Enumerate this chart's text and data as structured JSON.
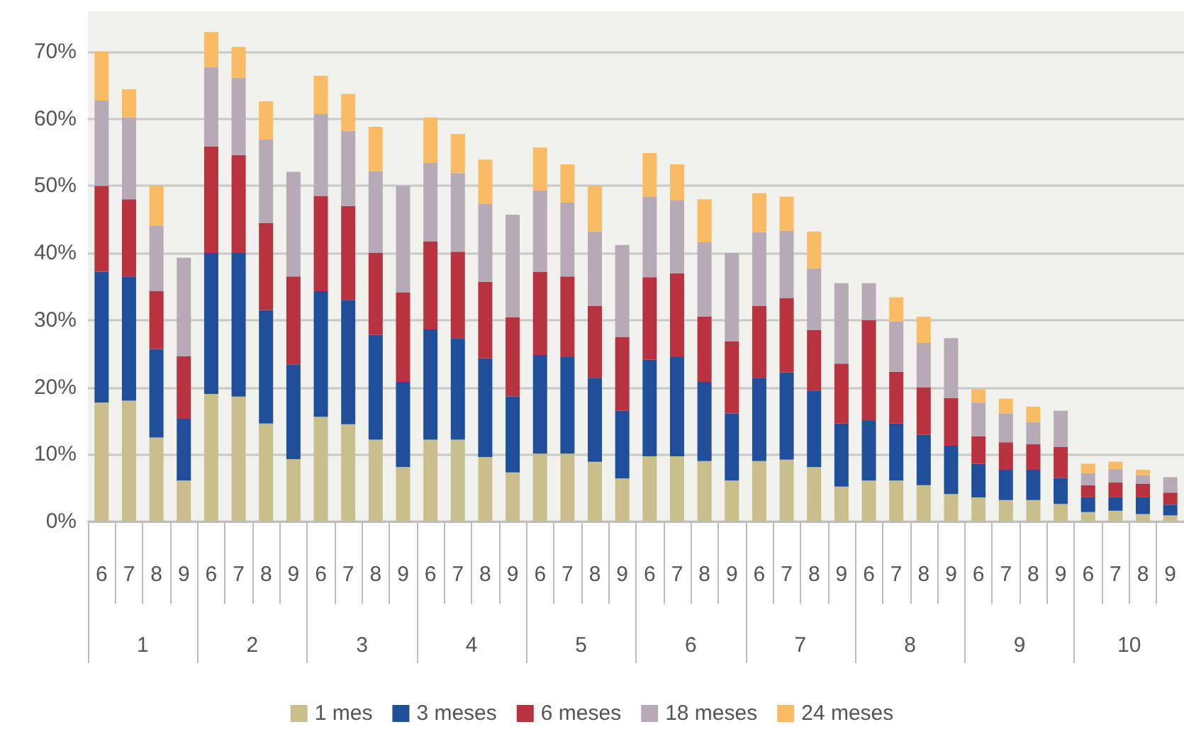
{
  "chart_data": {
    "type": "bar",
    "stacked": true,
    "grid": "y",
    "legend": "bottom",
    "categories": [
      "6",
      "7",
      "8",
      "9",
      "6",
      "7",
      "8",
      "9",
      "6",
      "7",
      "8",
      "9",
      "6",
      "7",
      "8",
      "9",
      "6",
      "7",
      "8",
      "9",
      "6",
      "7",
      "8",
      "9",
      "6",
      "7",
      "8",
      "9",
      "6",
      "7",
      "8",
      "9",
      "6",
      "7",
      "8",
      "9",
      "6",
      "7",
      "8",
      "9"
    ],
    "annotations": [
      "1",
      "2",
      "3",
      "4",
      "5",
      "6",
      "7",
      "8",
      "9",
      "10"
    ],
    "ylim": [
      0,
      76
    ],
    "yticks": [
      {
        "value": 0,
        "label": "0%"
      },
      {
        "value": 10,
        "label": "10%"
      },
      {
        "value": 20,
        "label": "20%"
      },
      {
        "value": 30,
        "label": "30%"
      },
      {
        "value": 40,
        "label": "40%"
      },
      {
        "value": 50,
        "label": "50%"
      },
      {
        "value": 60,
        "label": "60%"
      },
      {
        "value": 70,
        "label": "70%"
      }
    ],
    "series": [
      {
        "name": "1 mes",
        "color": "#c8bf8c",
        "values": [
          17.7,
          18.0,
          12.5,
          6.1,
          19.0,
          18.6,
          14.6,
          9.3,
          15.6,
          14.5,
          12.2,
          8.1,
          12.2,
          12.2,
          9.6,
          7.3,
          10.1,
          10.1,
          8.9,
          6.4,
          9.7,
          9.7,
          9.0,
          6.1,
          9.0,
          9.2,
          8.1,
          5.2,
          6.1,
          6.1,
          5.4,
          4.1,
          3.6,
          3.2,
          3.2,
          2.6,
          1.4,
          1.6,
          1.1,
          0.9
        ]
      },
      {
        "name": "3 meses",
        "color": "#1f4e9a",
        "values": [
          19.5,
          18.5,
          13.2,
          9.2,
          21.0,
          21.4,
          16.9,
          14.1,
          18.7,
          18.5,
          15.6,
          12.7,
          16.4,
          15.1,
          14.7,
          11.3,
          14.7,
          14.4,
          12.5,
          10.1,
          14.4,
          14.8,
          11.8,
          10.0,
          12.4,
          13.0,
          11.4,
          9.4,
          8.9,
          8.5,
          7.5,
          7.2,
          5.0,
          4.5,
          4.5,
          3.9,
          2.2,
          2.0,
          2.5,
          1.6
        ]
      },
      {
        "name": "6 meses",
        "color": "#b8323f",
        "values": [
          12.8,
          11.5,
          8.6,
          9.3,
          15.9,
          14.6,
          13.0,
          13.1,
          14.2,
          14.0,
          12.2,
          13.3,
          13.1,
          12.9,
          11.4,
          11.8,
          12.4,
          12.0,
          10.7,
          11.0,
          12.3,
          12.5,
          9.7,
          10.7,
          10.7,
          11.1,
          9.0,
          8.9,
          15.0,
          7.7,
          7.1,
          7.1,
          4.1,
          4.1,
          3.8,
          4.6,
          1.8,
          2.2,
          2.0,
          1.8
        ]
      },
      {
        "name": "18 meses",
        "color": "#b5aab5",
        "values": [
          12.7,
          12.2,
          9.8,
          14.7,
          11.8,
          11.5,
          12.4,
          15.6,
          12.2,
          11.2,
          12.2,
          15.9,
          11.7,
          11.7,
          11.6,
          15.3,
          12.1,
          11.0,
          11.1,
          13.7,
          12.0,
          10.9,
          11.1,
          13.2,
          11.0,
          10.0,
          9.2,
          12.0,
          5.5,
          7.5,
          6.6,
          8.9,
          5.0,
          4.3,
          3.3,
          5.4,
          1.8,
          2.0,
          1.3,
          2.3
        ]
      },
      {
        "name": "24 meses",
        "color": "#f9bb63",
        "values": [
          7.3,
          4.2,
          5.9,
          null,
          5.2,
          4.6,
          5.7,
          null,
          5.7,
          5.5,
          6.6,
          null,
          6.8,
          5.8,
          6.6,
          null,
          6.4,
          5.7,
          6.8,
          null,
          6.5,
          5.3,
          6.4,
          null,
          5.8,
          5.1,
          5.5,
          null,
          null,
          3.6,
          3.9,
          null,
          2.0,
          2.2,
          2.3,
          null,
          1.4,
          1.1,
          0.8,
          null
        ]
      }
    ]
  }
}
